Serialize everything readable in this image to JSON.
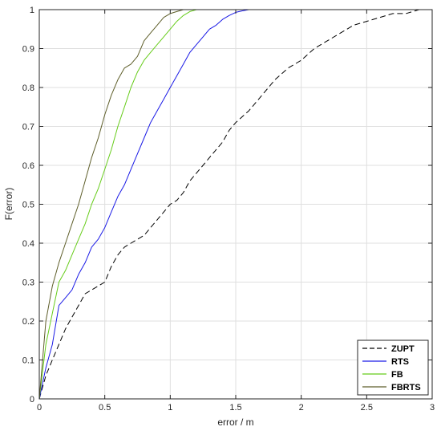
{
  "chart_data": {
    "type": "line",
    "xlabel": "error / m",
    "ylabel": "F(error)",
    "xlim": [
      0,
      3
    ],
    "ylim": [
      0,
      1
    ],
    "xticks": [
      0,
      0.5,
      1,
      1.5,
      2,
      2.5,
      3
    ],
    "xtick_labels": [
      "0",
      "0.5",
      "1",
      "1.5",
      "2",
      "2.5",
      "3"
    ],
    "yticks": [
      0,
      0.1,
      0.2,
      0.3,
      0.4,
      0.5,
      0.6,
      0.7,
      0.8,
      0.9,
      1
    ],
    "ytick_labels": [
      "0",
      "0.1",
      "0.2",
      "0.3",
      "0.4",
      "0.5",
      "0.6",
      "0.7",
      "0.8",
      "0.9",
      "1"
    ],
    "grid": true,
    "legend_position": "bottom-right",
    "series": [
      {
        "name": "ZUPT",
        "color": "#000000",
        "dash": "dashed",
        "x": [
          0,
          0.05,
          0.1,
          0.15,
          0.2,
          0.25,
          0.3,
          0.35,
          0.4,
          0.45,
          0.5,
          0.55,
          0.6,
          0.65,
          0.7,
          0.75,
          0.8,
          0.85,
          0.9,
          0.95,
          1.0,
          1.05,
          1.1,
          1.15,
          1.2,
          1.25,
          1.3,
          1.35,
          1.4,
          1.45,
          1.5,
          1.6,
          1.7,
          1.8,
          1.9,
          2.0,
          2.1,
          2.2,
          2.3,
          2.4,
          2.5,
          2.6,
          2.7,
          2.8,
          2.9,
          3.0
        ],
        "y": [
          0,
          0.06,
          0.1,
          0.14,
          0.18,
          0.21,
          0.24,
          0.27,
          0.28,
          0.29,
          0.3,
          0.34,
          0.37,
          0.39,
          0.4,
          0.41,
          0.42,
          0.44,
          0.46,
          0.48,
          0.5,
          0.51,
          0.53,
          0.56,
          0.58,
          0.6,
          0.62,
          0.64,
          0.66,
          0.69,
          0.71,
          0.74,
          0.78,
          0.82,
          0.85,
          0.87,
          0.9,
          0.92,
          0.94,
          0.96,
          0.97,
          0.98,
          0.99,
          0.99,
          1.0,
          1.0
        ]
      },
      {
        "name": "RTS",
        "color": "#1a1ae6",
        "dash": "solid",
        "x": [
          0,
          0.05,
          0.1,
          0.15,
          0.2,
          0.25,
          0.3,
          0.35,
          0.4,
          0.45,
          0.5,
          0.55,
          0.6,
          0.65,
          0.7,
          0.75,
          0.8,
          0.85,
          0.9,
          0.95,
          1.0,
          1.05,
          1.1,
          1.15,
          1.2,
          1.25,
          1.3,
          1.35,
          1.4,
          1.45,
          1.5,
          1.55,
          1.6,
          1.65
        ],
        "y": [
          0,
          0.08,
          0.14,
          0.24,
          0.26,
          0.28,
          0.32,
          0.35,
          0.39,
          0.41,
          0.44,
          0.48,
          0.52,
          0.55,
          0.59,
          0.63,
          0.67,
          0.71,
          0.74,
          0.77,
          0.8,
          0.83,
          0.86,
          0.89,
          0.91,
          0.93,
          0.95,
          0.96,
          0.975,
          0.985,
          0.993,
          0.997,
          1.0,
          1.0
        ]
      },
      {
        "name": "FB",
        "color": "#66cc1a",
        "dash": "solid",
        "x": [
          0,
          0.05,
          0.1,
          0.15,
          0.2,
          0.25,
          0.3,
          0.35,
          0.4,
          0.45,
          0.5,
          0.55,
          0.6,
          0.65,
          0.7,
          0.75,
          0.8,
          0.85,
          0.9,
          0.95,
          1.0,
          1.05,
          1.1,
          1.15,
          1.2,
          1.25
        ],
        "y": [
          0,
          0.14,
          0.22,
          0.3,
          0.33,
          0.37,
          0.41,
          0.45,
          0.5,
          0.54,
          0.59,
          0.64,
          0.7,
          0.75,
          0.8,
          0.84,
          0.87,
          0.89,
          0.91,
          0.93,
          0.95,
          0.97,
          0.985,
          0.995,
          1.0,
          1.0
        ]
      },
      {
        "name": "FBRTS",
        "color": "#5e5e2a",
        "dash": "solid",
        "x": [
          0,
          0.05,
          0.1,
          0.15,
          0.2,
          0.25,
          0.3,
          0.35,
          0.4,
          0.45,
          0.5,
          0.55,
          0.6,
          0.65,
          0.7,
          0.75,
          0.8,
          0.85,
          0.9,
          0.95,
          1.0,
          1.05,
          1.1,
          1.15,
          1.2
        ],
        "y": [
          0,
          0.2,
          0.29,
          0.35,
          0.4,
          0.45,
          0.5,
          0.56,
          0.62,
          0.67,
          0.73,
          0.78,
          0.82,
          0.85,
          0.86,
          0.88,
          0.92,
          0.94,
          0.96,
          0.98,
          0.99,
          0.995,
          1.0,
          1.0,
          1.0
        ]
      }
    ]
  }
}
